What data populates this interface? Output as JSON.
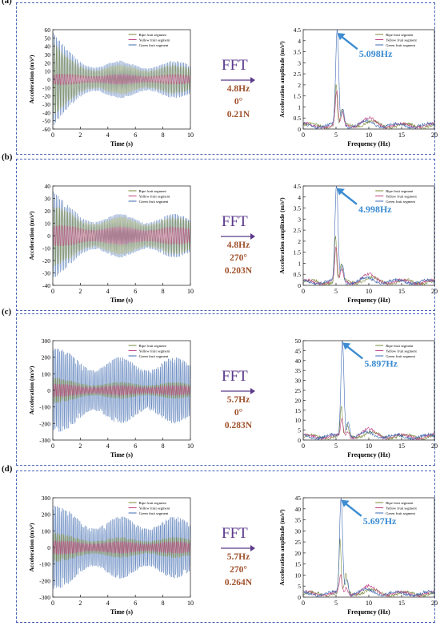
{
  "chart_data": [
    {
      "panel": "(a)",
      "fft_label": "FFT",
      "conditions": [
        "4.8Hz",
        "0°",
        "0.21N"
      ],
      "time_chart": {
        "type": "line",
        "xlabel": "Time (s)",
        "ylabel": "Acceleration (m/s²)",
        "xlim": [
          0,
          10
        ],
        "ylim": [
          -60,
          60
        ],
        "xticks": [
          "0",
          "2",
          "4",
          "6",
          "8",
          "10"
        ],
        "yticks": [
          "60",
          "50",
          "40",
          "30",
          "20",
          "10",
          "0",
          "-10",
          "-20",
          "-30",
          "-40",
          "-50",
          "-60"
        ],
        "drive_freq": 4.8,
        "envelopes": {
          "Ripe fruit segment": [
            45,
            14
          ],
          "Yellow fruit segment": [
            6,
            5
          ],
          "Green fruit segment": [
            57,
            18
          ]
        },
        "legend": [
          "Ripe fruit segment",
          "Yellow fruit segment",
          "Green fruit segment"
        ]
      },
      "fft_chart": {
        "type": "line",
        "xlabel": "Frequency (Hz)",
        "ylabel": "Acceleration amplitude (m/s²)",
        "xlim": [
          0,
          20
        ],
        "ylim": [
          0,
          4.5
        ],
        "xticks": [
          "0",
          "5",
          "10",
          "15",
          "20"
        ],
        "yticks": [
          "4.5",
          "4",
          "3.5",
          "3",
          "2.5",
          "2",
          "1.5",
          "1",
          "0.5",
          "0"
        ],
        "peak": {
          "label": "5.098Hz",
          "x": 5.098,
          "y": 4.35
        },
        "series_peaks": {
          "Ripe fruit segment": 1.85,
          "Yellow fruit segment": 1.5,
          "Green fruit segment": 4.35
        },
        "legend": [
          "Ripe fruit segment",
          "Yellow fruit segment",
          "Green fruit segment"
        ]
      }
    },
    {
      "panel": "(b)",
      "fft_label": "FFT",
      "conditions": [
        "4.8Hz",
        "270°",
        "0.203N"
      ],
      "time_chart": {
        "type": "line",
        "xlabel": "Time (s)",
        "ylabel": "Acceleration (m/s²)",
        "xlim": [
          0,
          10
        ],
        "ylim": [
          -40,
          40
        ],
        "xticks": [
          "0",
          "2",
          "4",
          "6",
          "8",
          "10"
        ],
        "yticks": [
          "40",
          "30",
          "20",
          "10",
          "0",
          "-10",
          "-20",
          "-30",
          "-40"
        ],
        "drive_freq": 4.8,
        "envelopes": {
          "Ripe fruit segment": [
            25,
            12
          ],
          "Yellow fruit segment": [
            8,
            6
          ],
          "Green fruit segment": [
            36,
            14
          ]
        },
        "legend": [
          "Ripe fruit segment",
          "Yellow fruit segment",
          "Green fruit segment"
        ]
      },
      "fft_chart": {
        "type": "line",
        "xlabel": "Frequency (Hz)",
        "ylabel": "Acceleration amplitude (m/s²)",
        "xlim": [
          0,
          20
        ],
        "ylim": [
          0,
          4.5
        ],
        "xticks": [
          "0",
          "5",
          "10",
          "15",
          "20"
        ],
        "yticks": [
          "4.5",
          "4",
          "3.5",
          "3",
          "2.5",
          "2",
          "1.5",
          "1",
          "0.5",
          "0"
        ],
        "peak": {
          "label": "4.998Hz",
          "x": 4.998,
          "y": 4.4
        },
        "series_peaks": {
          "Ripe fruit segment": 2.1,
          "Yellow fruit segment": 1.5,
          "Green fruit segment": 4.4
        },
        "legend": [
          "Ripe fruit segment",
          "Yellow fruit segment",
          "Green fruit segment"
        ]
      }
    },
    {
      "panel": "(c)",
      "fft_label": "FFT",
      "conditions": [
        "5.7Hz",
        "0°",
        "0.283N"
      ],
      "time_chart": {
        "type": "line",
        "xlabel": "Time (s)",
        "ylabel": "Acceleration (m/s²)",
        "xlim": [
          0,
          10
        ],
        "ylim": [
          -300,
          300
        ],
        "xticks": [
          "0",
          "2",
          "4",
          "6",
          "8",
          "10"
        ],
        "yticks": [
          "300",
          "200",
          "100",
          "0",
          "-100",
          "-200",
          "-300"
        ],
        "drive_freq": 5.7,
        "envelopes": {
          "Ripe fruit segment": [
            80,
            40
          ],
          "Yellow fruit segment": [
            40,
            25
          ],
          "Green fruit segment": [
            255,
            160
          ]
        },
        "legend": [
          "Ripe fruit segment",
          "Yellow fruit segment",
          "Green fruit segment"
        ]
      },
      "fft_chart": {
        "type": "line",
        "xlabel": "Frequency (Hz)",
        "ylabel": "",
        "xlim": [
          0,
          20
        ],
        "ylim": [
          0,
          50
        ],
        "xticks": [
          "0",
          "5",
          "10",
          "15",
          "20"
        ],
        "yticks": [
          "50",
          "45",
          "40",
          "35",
          "30",
          "25",
          "20",
          "15",
          "10",
          "5",
          "0"
        ],
        "peak": {
          "label": "5.897Hz",
          "x": 5.897,
          "y": 49
        },
        "series_peaks": {
          "Ripe fruit segment": 15,
          "Yellow fruit segment": 8,
          "Green fruit segment": 49
        },
        "legend": [
          "Ripe fruit segment",
          "Yellow fruit segment",
          "Green fruit segment"
        ]
      }
    },
    {
      "panel": "(d)",
      "fft_label": "FFT",
      "conditions": [
        "5.7Hz",
        "270°",
        "0.264N"
      ],
      "time_chart": {
        "type": "line",
        "xlabel": "Time (s)",
        "ylabel": "Acceleration (m/s²)",
        "xlim": [
          0,
          10
        ],
        "ylim": [
          -300,
          300
        ],
        "xticks": [
          "0",
          "2",
          "4",
          "6",
          "8",
          "10"
        ],
        "yticks": [
          "300",
          "200",
          "100",
          "0",
          "-100",
          "-200",
          "-300"
        ],
        "drive_freq": 5.7,
        "envelopes": {
          "Ripe fruit segment": [
            90,
            50
          ],
          "Yellow fruit segment": [
            40,
            30
          ],
          "Green fruit segment": [
            255,
            150
          ]
        },
        "legend": [
          "Ripe fruit segment",
          "Yellow fruit segment",
          "Green fruit segment"
        ]
      },
      "fft_chart": {
        "type": "line",
        "xlabel": "Frequency (Hz)",
        "ylabel": "Acceleration amplitude (m/s²)",
        "xlim": [
          0,
          20
        ],
        "ylim": [
          0,
          45
        ],
        "xticks": [
          "0",
          "5",
          "10",
          "15",
          "20"
        ],
        "yticks": [
          "45",
          "40",
          "35",
          "30",
          "25",
          "20",
          "15",
          "10",
          "5",
          "0"
        ],
        "peak": {
          "label": "5.697Hz",
          "x": 5.697,
          "y": 44
        },
        "series_peaks": {
          "Ripe fruit segment": 24,
          "Yellow fruit segment": 8,
          "Green fruit segment": 44
        },
        "legend": [
          "Ripe fruit segment",
          "Yellow fruit segment",
          "Green fruit segment"
        ]
      }
    }
  ],
  "colors": {
    "ripe": "#7a8a3a",
    "yellow": "#c04080",
    "green": "#3f6ab0",
    "frame": "#4a63b5",
    "arrow": "#5b3a8c",
    "peak_arrow": "#3c8cd2",
    "conditions": "#a0522d"
  }
}
